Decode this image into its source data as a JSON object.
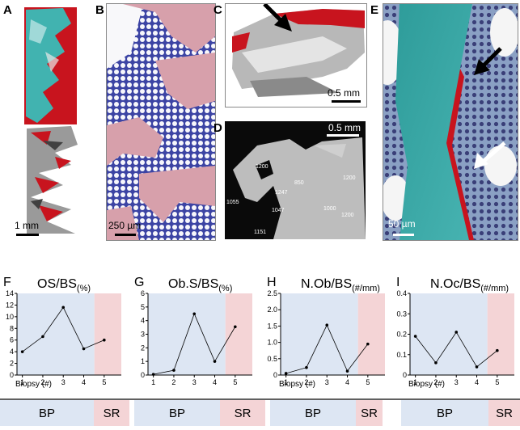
{
  "panels": {
    "A": {
      "label": "A",
      "scale": "1 mm"
    },
    "B": {
      "label": "B",
      "scale": "250 µm"
    },
    "C": {
      "label": "C",
      "scale": "0.5 mm"
    },
    "D": {
      "label": "D",
      "scale": "0.5 mm",
      "annotations": [
        "1200",
        "850",
        "1247",
        "1200",
        "1055",
        "1047",
        "1000",
        "1200",
        "1151"
      ]
    },
    "E": {
      "label": "E",
      "scale": "50 µm"
    }
  },
  "colors": {
    "bp_bg": "#dde6f3",
    "sr_bg": "#f4d4d6",
    "red": "#c8141e",
    "teal": "#41b3b0"
  },
  "chart_data": [
    {
      "type": "line",
      "label": "F",
      "title": "OS/BS",
      "title_sub": "(%)",
      "x": [
        1,
        2,
        3,
        4,
        5
      ],
      "values": [
        4,
        6.6,
        11.6,
        4.5,
        6
      ],
      "ylim": [
        0,
        14
      ],
      "yticks": [
        "0",
        "2",
        "4",
        "6",
        "8",
        "10",
        "12",
        "14"
      ],
      "xlabel": "Biopsy (#)",
      "groups": [
        "BP",
        "SR"
      ]
    },
    {
      "type": "line",
      "label": "G",
      "title": "Ob.S/BS",
      "title_sub": "(%)",
      "x": [
        1,
        2,
        3,
        4,
        5
      ],
      "values": [
        0.05,
        0.35,
        4.5,
        1.0,
        3.55
      ],
      "ylim": [
        0,
        6
      ],
      "yticks": [
        "0",
        "1",
        "2",
        "3",
        "4",
        "5",
        "6"
      ],
      "xlabel": "",
      "groups": [
        "BP",
        "SR"
      ]
    },
    {
      "type": "line",
      "label": "H",
      "title": "N.Ob/BS",
      "title_sub": "(#/mm)",
      "x": [
        1,
        2,
        3,
        4,
        5
      ],
      "values": [
        0.05,
        0.23,
        1.53,
        0.12,
        0.95
      ],
      "ylim": [
        0,
        2.5
      ],
      "yticks": [
        "0",
        "0.5",
        "1.0",
        "1.5",
        "2.0",
        "2.5"
      ],
      "xlabel": "Biopsy (#)",
      "groups": [
        "BP",
        "SR"
      ]
    },
    {
      "type": "line",
      "label": "I",
      "title": "N.Oc/BS",
      "title_sub": "(#/mm)",
      "x": [
        1,
        2,
        3,
        4,
        5
      ],
      "values": [
        0.19,
        0.06,
        0.21,
        0.04,
        0.12
      ],
      "ylim": [
        0,
        0.4
      ],
      "yticks": [
        "0",
        "0.1",
        "0.2",
        "0.3",
        "0.4"
      ],
      "xlabel": "Biopsy (#)",
      "groups": [
        "BP",
        "SR"
      ]
    }
  ]
}
